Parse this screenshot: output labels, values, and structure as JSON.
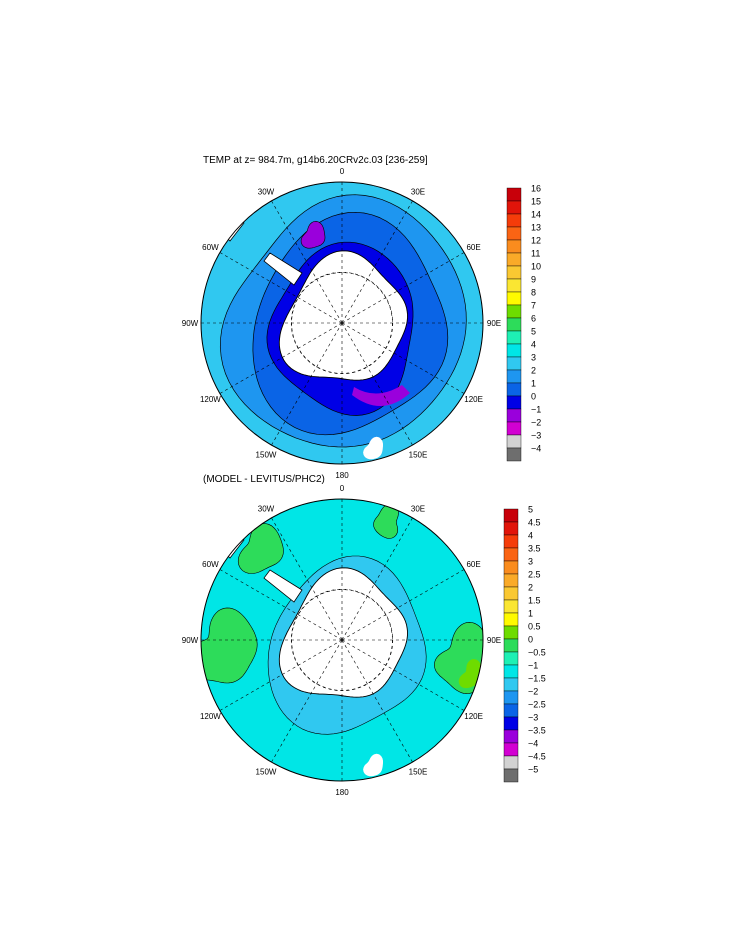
{
  "chart_data": [
    {
      "type": "heatmap",
      "projection": "south-polar-stereographic",
      "title": "TEMP at z= 984.7m, g14b6.20CRv2c.03 [236-259]",
      "longitude_labels": [
        "0",
        "30E",
        "60E",
        "90E",
        "120E",
        "150E",
        "180",
        "150W",
        "120W",
        "90W",
        "60W",
        "30W"
      ],
      "colorbar": {
        "labels": [
          "16",
          "15",
          "14",
          "13",
          "12",
          "11",
          "10",
          "9",
          "8",
          "7",
          "6",
          "5",
          "4",
          "3",
          "2",
          "1",
          "0",
          "−1",
          "−2",
          "−3",
          "−4"
        ],
        "colors": [
          "#c8000a",
          "#e1140a",
          "#f53c0a",
          "#fa6414",
          "#fa8c1e",
          "#faaa28",
          "#fac832",
          "#fae632",
          "#fffa00",
          "#6edc00",
          "#2ddc5a",
          "#1ef0b4",
          "#00e6e6",
          "#30c8f0",
          "#1e96f0",
          "#0a64e6",
          "#0000e6",
          "#9a00dc",
          "#d200d2",
          "#d2d2d2",
          "#6e6e6e"
        ]
      },
      "field": {
        "ocean": "#0a64e6",
        "ring_outer": "#30c8f0",
        "ring_mid": "#1e96f0",
        "shelf": "#0000e6",
        "cold_patch": "#9a00dc"
      }
    },
    {
      "type": "heatmap",
      "projection": "south-polar-stereographic",
      "title": "(MODEL - LEVITUS/PHC2)",
      "longitude_labels": [
        "0",
        "30E",
        "60E",
        "90E",
        "120E",
        "150E",
        "180",
        "150W",
        "120W",
        "90W",
        "60W",
        "30W"
      ],
      "colorbar": {
        "labels": [
          "5",
          "4.5",
          "4",
          "3.5",
          "3",
          "2.5",
          "2",
          "1.5",
          "1",
          "0.5",
          "0",
          "−0.5",
          "−1",
          "−1.5",
          "−2",
          "−2.5",
          "−3",
          "−3.5",
          "−4",
          "−4.5",
          "−5"
        ],
        "colors": [
          "#c8000a",
          "#e1140a",
          "#f53c0a",
          "#fa6414",
          "#fa8c1e",
          "#faaa28",
          "#fac832",
          "#fae632",
          "#fffa00",
          "#6edc00",
          "#2ddc5a",
          "#1ef0b4",
          "#00e6e6",
          "#30c8f0",
          "#1e96f0",
          "#0a64e6",
          "#0000e6",
          "#9a00dc",
          "#d200d2",
          "#d2d2d2",
          "#6e6e6e"
        ]
      },
      "field": {
        "ocean": "#00e6e6",
        "positive": "#2ddc5a",
        "strong_positive": "#6edc00",
        "mild_negative": "#30c8f0"
      }
    }
  ]
}
